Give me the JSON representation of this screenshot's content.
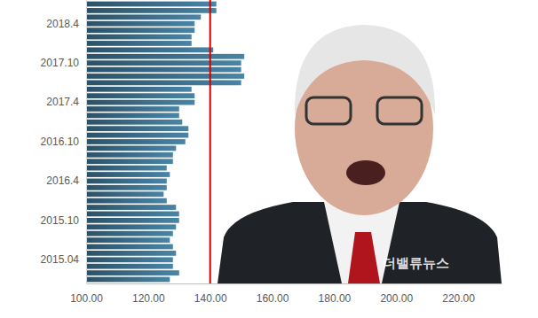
{
  "chart_data": {
    "type": "bar",
    "orientation": "horizontal",
    "categories": [
      null,
      null,
      null,
      "2015.04",
      null,
      null,
      null,
      null,
      null,
      "2015.10",
      null,
      null,
      null,
      null,
      null,
      "2016.4",
      null,
      null,
      null,
      null,
      null,
      "2016.10",
      null,
      null,
      null,
      null,
      null,
      "2017.4",
      null,
      null,
      null,
      null,
      null,
      "2017.10",
      null,
      null,
      null,
      null,
      null,
      "2018.4",
      null,
      null,
      null
    ],
    "values": [
      127,
      130,
      128,
      128,
      129,
      128,
      127,
      128,
      129,
      130,
      130,
      129,
      126,
      125,
      126,
      126,
      127,
      126,
      128,
      128,
      129,
      132,
      133,
      133,
      131,
      130,
      130,
      135,
      135,
      134,
      150,
      151,
      150,
      150,
      151,
      141,
      134,
      134,
      135,
      135,
      137,
      142,
      142
    ],
    "color": "#3d6f8c",
    "xlim": [
      100,
      234
    ],
    "xticks": [
      {
        "value": 100,
        "label": "100.00"
      },
      {
        "value": 120,
        "label": "120.00"
      },
      {
        "value": 140,
        "label": "140.00"
      },
      {
        "value": 160,
        "label": "160.00"
      },
      {
        "value": 180,
        "label": "180.00"
      },
      {
        "value": 200,
        "label": "200.00"
      },
      {
        "value": 220,
        "label": "220.00"
      }
    ],
    "reference_line": 140,
    "annotations": [
      "더밸류뉴스"
    ]
  }
}
